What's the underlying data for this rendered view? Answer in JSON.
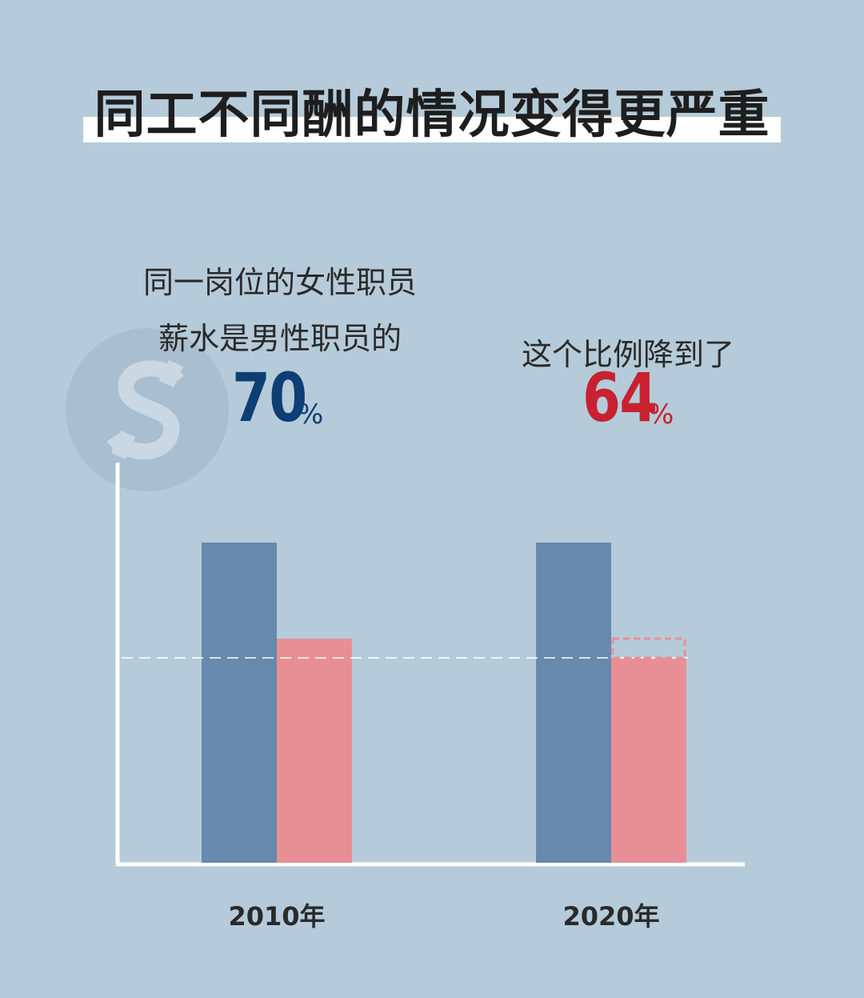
{
  "title": "同工不同酬的情况变得更严重",
  "left_caption": {
    "line1": "同一岗位的女性职员",
    "line2": "薪水是男性职员的",
    "value": "70",
    "unit": "%"
  },
  "right_caption": {
    "line1": "这个比例降到了",
    "value": "64",
    "unit": "%"
  },
  "colors": {
    "male": "#6689ad",
    "female": "#e88f96",
    "value_2010": "#0e3e74",
    "value_2020": "#c8212f",
    "background": "#b5cbd9"
  },
  "icons": {
    "coin": "dollar-coin-icon"
  },
  "chart_data": {
    "type": "bar",
    "categories": [
      "2010年",
      "2020年"
    ],
    "series": [
      {
        "values": [
          100,
          100
        ]
      },
      {
        "values": [
          70,
          64
        ]
      }
    ],
    "reference_line": {
      "value": 64,
      "style": "dashed"
    },
    "previous_value_outline": {
      "category": "2020年",
      "value": 70,
      "style": "dashed"
    },
    "ylim": [
      0,
      125
    ],
    "xlabel": "",
    "ylabel": "",
    "grid": false,
    "legend": "none"
  }
}
